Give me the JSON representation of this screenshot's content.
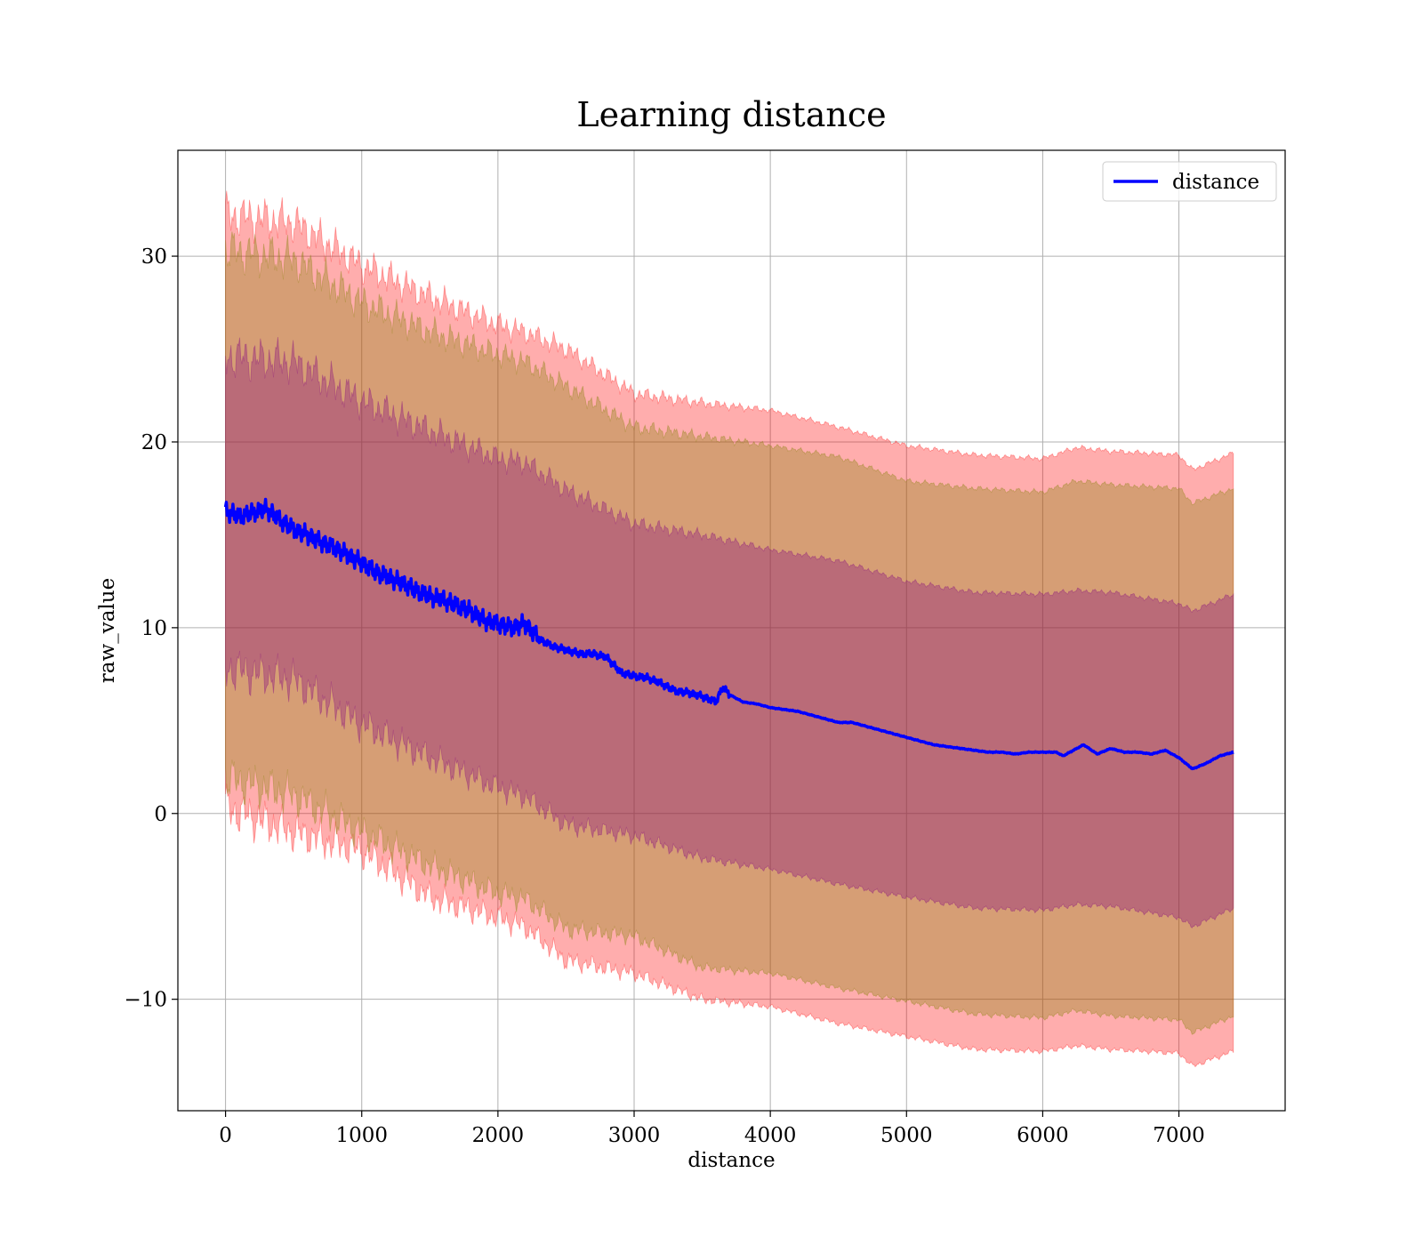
{
  "chart_data": {
    "type": "line",
    "title": "Learning distance",
    "xlabel": "distance",
    "ylabel": "raw_value",
    "xlim": [
      -350,
      7780
    ],
    "ylim": [
      -16,
      35.7
    ],
    "xticks": [
      0,
      1000,
      2000,
      3000,
      4000,
      5000,
      6000,
      7000
    ],
    "yticks": [
      -10,
      0,
      10,
      20,
      30
    ],
    "grid": true,
    "legend": {
      "placement": "top-right",
      "entries": [
        "distance"
      ]
    },
    "colors": {
      "line": "#0000ff",
      "band_outer": "#ff0000",
      "band_middle": "#808000",
      "band_inner": "#800080"
    },
    "series": [
      {
        "name": "distance",
        "x": [
          0,
          100,
          200,
          300,
          400,
          500,
          600,
          700,
          800,
          900,
          1000,
          1100,
          1200,
          1300,
          1400,
          1500,
          1600,
          1700,
          1800,
          1900,
          2000,
          2100,
          2200,
          2300,
          2400,
          2500,
          2600,
          2700,
          2800,
          2900,
          3000,
          3100,
          3200,
          3300,
          3400,
          3500,
          3600,
          3650,
          3700,
          3800,
          3900,
          4000,
          4100,
          4200,
          4300,
          4400,
          4500,
          4600,
          4700,
          4800,
          4900,
          5000,
          5100,
          5200,
          5300,
          5400,
          5500,
          5600,
          5700,
          5800,
          5900,
          6000,
          6100,
          6150,
          6250,
          6300,
          6400,
          6500,
          6600,
          6700,
          6800,
          6900,
          7000,
          7100,
          7200,
          7300,
          7400
        ],
        "values": [
          16.3,
          16.0,
          16.2,
          16.4,
          15.8,
          15.3,
          15.0,
          14.6,
          14.3,
          13.9,
          13.5,
          13.0,
          12.7,
          12.4,
          12.0,
          11.7,
          11.5,
          11.2,
          10.9,
          10.4,
          10.2,
          10.0,
          10.2,
          9.4,
          9.0,
          8.8,
          8.6,
          8.6,
          8.4,
          7.6,
          7.4,
          7.3,
          7.0,
          6.6,
          6.5,
          6.3,
          6.0,
          6.8,
          6.4,
          6.0,
          5.9,
          5.7,
          5.6,
          5.5,
          5.3,
          5.1,
          4.9,
          4.9,
          4.7,
          4.5,
          4.3,
          4.1,
          3.9,
          3.7,
          3.6,
          3.5,
          3.4,
          3.3,
          3.3,
          3.2,
          3.3,
          3.3,
          3.3,
          3.1,
          3.5,
          3.7,
          3.2,
          3.5,
          3.3,
          3.3,
          3.2,
          3.4,
          3.0,
          2.4,
          2.7,
          3.1,
          3.3
        ]
      },
      {
        "name": "",
        "band": "outer",
        "x": [
          0,
          500,
          1000,
          1500,
          2000,
          2200,
          2500,
          3000,
          3500,
          4000,
          4500,
          5000,
          5500,
          6000,
          6250,
          6500,
          7000,
          7100,
          7400
        ],
        "upper": [
          32.2,
          31.8,
          29.5,
          27.8,
          26.3,
          25.9,
          25.0,
          22.6,
          22.1,
          21.7,
          20.8,
          19.8,
          19.3,
          19.1,
          19.7,
          19.5,
          19.3,
          18.5,
          19.4
        ],
        "lower": [
          0.3,
          -1.0,
          -2.0,
          -4.5,
          -5.6,
          -6.1,
          -7.9,
          -8.6,
          -10.0,
          -10.4,
          -11.3,
          -12.0,
          -12.7,
          -12.8,
          -12.5,
          -12.7,
          -12.9,
          -13.6,
          -12.8
        ]
      },
      {
        "name": "",
        "band": "middle",
        "x": [
          0,
          500,
          1000,
          1500,
          2000,
          2200,
          2500,
          3000,
          3500,
          4000,
          4500,
          5000,
          5500,
          6000,
          6250,
          6500,
          7000,
          7100,
          7400
        ],
        "upper": [
          30.3,
          29.8,
          27.5,
          25.9,
          24.7,
          24.3,
          23.0,
          20.8,
          20.3,
          19.8,
          19.2,
          17.9,
          17.5,
          17.3,
          17.9,
          17.7,
          17.5,
          16.7,
          17.5
        ],
        "lower": [
          1.9,
          1.0,
          -1.0,
          -2.8,
          -4.3,
          -4.6,
          -6.2,
          -6.6,
          -8.3,
          -8.6,
          -9.4,
          -10.1,
          -10.8,
          -11.0,
          -10.6,
          -10.9,
          -11.1,
          -11.8,
          -10.9
        ]
      },
      {
        "name": "",
        "band": "inner",
        "x": [
          0,
          500,
          1000,
          1500,
          2000,
          2200,
          2500,
          3000,
          3500,
          4000,
          4500,
          5000,
          5500,
          6000,
          6250,
          6500,
          7000,
          7100,
          7400
        ],
        "upper": [
          24.6,
          24.3,
          22.2,
          20.6,
          19.1,
          18.9,
          17.4,
          15.6,
          15.0,
          14.2,
          13.6,
          12.5,
          11.9,
          11.8,
          12.0,
          11.9,
          11.3,
          10.9,
          11.8
        ],
        "lower": [
          7.8,
          7.2,
          4.8,
          3.0,
          1.4,
          0.9,
          -0.6,
          -1.2,
          -2.4,
          -3.0,
          -3.8,
          -4.5,
          -5.1,
          -5.2,
          -4.9,
          -5.0,
          -5.6,
          -6.1,
          -5.1
        ]
      }
    ]
  }
}
